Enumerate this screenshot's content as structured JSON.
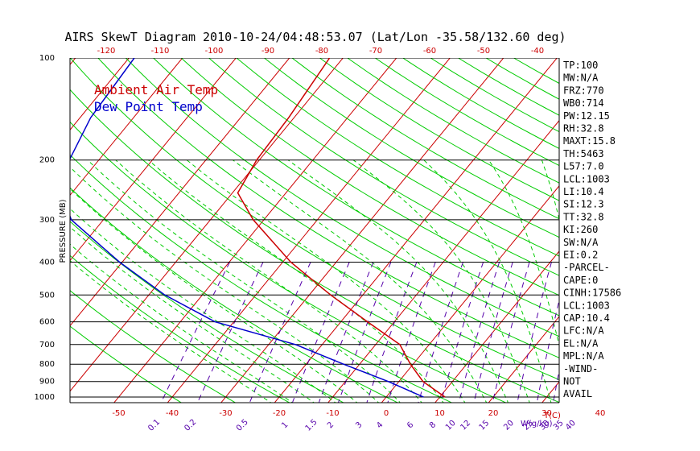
{
  "chart_data": {
    "type": "line",
    "title": "AIRS SkewT Diagram 2010-10-24/04:48:53.07 (Lat/Lon -35.58/132.60 deg)",
    "ylabel": "PRESSURE (MB)",
    "xlabel": "T(C)",
    "mixing_ratio_label": "W(g/kg)",
    "pressure_ticks": [
      "100",
      "200",
      "300",
      "400",
      "500",
      "600",
      "700",
      "800",
      "900",
      "1000"
    ],
    "bottom_temp_ticks": [
      "-50",
      "-40",
      "-30",
      "-20",
      "-10",
      "0",
      "10",
      "20",
      "30",
      "40"
    ],
    "top_temp_ticks": [
      "-120",
      "-110",
      "-100",
      "-90",
      "-80",
      "-70",
      "-60",
      "-50",
      "-40"
    ],
    "mixing_ratio_ticks": [
      "0.1",
      "0.2",
      "0.5",
      "1",
      "1.5",
      "2",
      "3",
      "4",
      "6",
      "8",
      "10",
      "12",
      "15",
      "20",
      "25",
      "30",
      "35",
      "40"
    ],
    "series": [
      {
        "name": "Ambient Air Temp",
        "color": "#cc0000",
        "points": [
          {
            "p": 100,
            "t": -62.5
          },
          {
            "p": 150,
            "t": -61.0
          },
          {
            "p": 200,
            "t": -60.5
          },
          {
            "p": 250,
            "t": -59.0
          },
          {
            "p": 300,
            "t": -52.0
          },
          {
            "p": 400,
            "t": -38.5
          },
          {
            "p": 500,
            "t": -26.0
          },
          {
            "p": 600,
            "t": -15.0
          },
          {
            "p": 700,
            "t": -5.5
          },
          {
            "p": 800,
            "t": -0.5
          },
          {
            "p": 900,
            "t": 4.5
          },
          {
            "p": 1000,
            "t": 11.0
          }
        ]
      },
      {
        "name": "Dew Point Temp",
        "color": "#0000cc",
        "points": [
          {
            "p": 100,
            "t": -99.0
          },
          {
            "p": 150,
            "t": -98.0
          },
          {
            "p": 200,
            "t": -95.5
          },
          {
            "p": 250,
            "t": -92.0
          },
          {
            "p": 300,
            "t": -86.0
          },
          {
            "p": 400,
            "t": -70.5
          },
          {
            "p": 500,
            "t": -57.0
          },
          {
            "p": 600,
            "t": -43.5
          },
          {
            "p": 700,
            "t": -25.0
          },
          {
            "p": 800,
            "t": -13.0
          },
          {
            "p": 900,
            "t": -2.0
          },
          {
            "p": 1000,
            "t": 7.0
          }
        ]
      }
    ],
    "indices": [
      "TP:100",
      "MW:N/A",
      "FRZ:770",
      "WB0:714",
      "PW:12.15",
      "RH:32.8",
      "MAXT:15.8",
      "TH:5463",
      "L57:7.0",
      "LCL:1003",
      "LI:10.4",
      "SI:12.3",
      "TT:32.8",
      "KI:260",
      "SW:N/A",
      "EI:0.2",
      "-PARCEL-",
      "CAPE:0",
      "CINH:17586",
      "LCL:1003",
      "CAP:10.4",
      "LFC:N/A",
      "EL:N/A",
      "MPL:N/A",
      "-WIND-",
      "NOT",
      "AVAIL"
    ],
    "colors": {
      "isobar": "#000000",
      "isotherm": "#cc0000",
      "dry_adiabat": "#00cc00",
      "moist_adiabat": "#00cc00",
      "mixing_ratio": "#5500aa",
      "temp_tick": "#cc0000",
      "mixing_tick": "#5500aa"
    }
  }
}
